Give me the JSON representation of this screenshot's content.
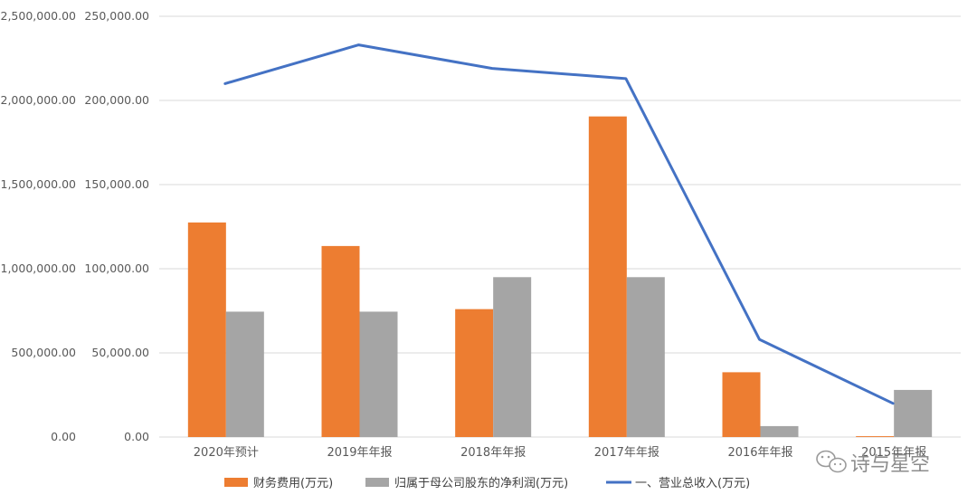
{
  "chart_data": {
    "type": "bar",
    "categories": [
      "2020年预计",
      "2019年年报",
      "2018年年报",
      "2017年年报",
      "2016年年报",
      "2015年年报"
    ],
    "series": [
      {
        "name": "财务费用(万元)",
        "kind": "bar",
        "axis": "right",
        "color": "#ED7D31",
        "values": [
          127500,
          113500,
          76000,
          190500,
          38500,
          500
        ]
      },
      {
        "name": "归属于母公司股东的净利润(万元)",
        "kind": "bar",
        "axis": "right",
        "color": "#A5A5A5",
        "values": [
          74500,
          74500,
          95000,
          95000,
          6500,
          28000
        ]
      },
      {
        "name": "一、营业总收入(万元)",
        "kind": "line",
        "axis": "left",
        "color": "#4472C4",
        "values": [
          2100000,
          2330000,
          2190000,
          2130000,
          580000,
          200000
        ]
      }
    ],
    "y_left": {
      "ylim": [
        0,
        2500000
      ],
      "ticks": [
        "0.00",
        "500,000.00",
        "1,000,000.00",
        "1,500,000.00",
        "2,000,000.00",
        "2,500,000.00"
      ]
    },
    "y_right": {
      "ylim": [
        0,
        250000
      ],
      "ticks": [
        "0.00",
        "50,000.00",
        "100,000.00",
        "150,000.00",
        "200,000.00",
        "250,000.00"
      ]
    },
    "grid": true,
    "legend_position": "bottom"
  },
  "watermark": {
    "text": "诗与星空",
    "icon": "wechat-icon"
  }
}
